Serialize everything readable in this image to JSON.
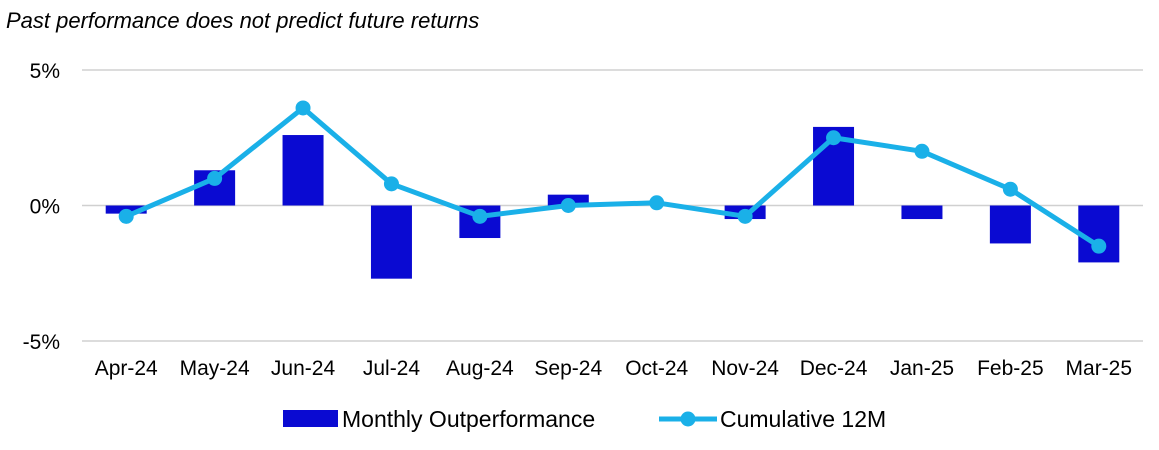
{
  "disclaimer": "Past performance does not predict future returns",
  "chart_data": {
    "type": "bar",
    "title": "",
    "xlabel": "",
    "ylabel": "",
    "categories": [
      "Apr-24",
      "May-24",
      "Jun-24",
      "Jul-24",
      "Aug-24",
      "Sep-24",
      "Oct-24",
      "Nov-24",
      "Dec-24",
      "Jan-25",
      "Feb-25",
      "Mar-25"
    ],
    "yticks": [
      5,
      0,
      -5
    ],
    "ytick_labels": [
      "5%",
      "0%",
      "-5%"
    ],
    "ylim": [
      -5,
      5
    ],
    "grid": true,
    "legend_position": "bottom",
    "series": [
      {
        "name": "Monthly Outperformance",
        "type": "bar",
        "color": "#0a0ad2",
        "values": [
          -0.3,
          1.3,
          2.6,
          -2.7,
          -1.2,
          0.4,
          0.0,
          -0.5,
          2.9,
          -0.5,
          -1.4,
          -2.1
        ]
      },
      {
        "name": "Cumulative 12M",
        "type": "line",
        "color": "#1ab0e8",
        "values": [
          -0.4,
          1.0,
          3.6,
          0.8,
          -0.4,
          0.0,
          0.1,
          -0.4,
          2.5,
          2.0,
          0.6,
          -1.5
        ]
      }
    ]
  }
}
